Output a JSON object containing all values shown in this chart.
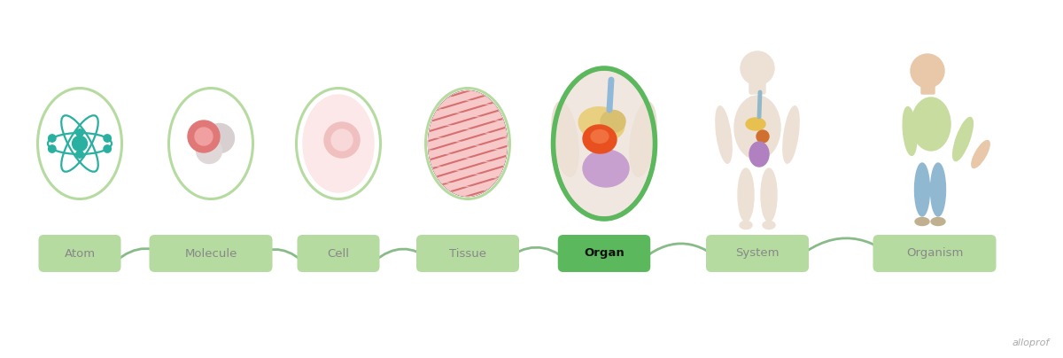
{
  "labels": [
    "Atom",
    "Molecule",
    "Cell",
    "Tissue",
    "Organ",
    "System",
    "Organism"
  ],
  "label_colors": [
    "#b5dba0",
    "#b5dba0",
    "#b5dba0",
    "#b5dba0",
    "#5cb85c",
    "#b5dba0",
    "#b5dba0"
  ],
  "label_text_colors": [
    "#888888",
    "#888888",
    "#888888",
    "#888888",
    "#111111",
    "#888888",
    "#888888"
  ],
  "label_font_weights": [
    "normal",
    "normal",
    "normal",
    "normal",
    "bold",
    "normal",
    "normal"
  ],
  "circle_border_color": "#b5dba0",
  "organ_border_color": "#5cb85c",
  "background_color": "#ffffff",
  "arrow_color": "#88bb88",
  "atom_color": "#2ab0a0",
  "alloprof_color": "#aaaaaa",
  "fig_width": 12.0,
  "fig_height": 4.04
}
